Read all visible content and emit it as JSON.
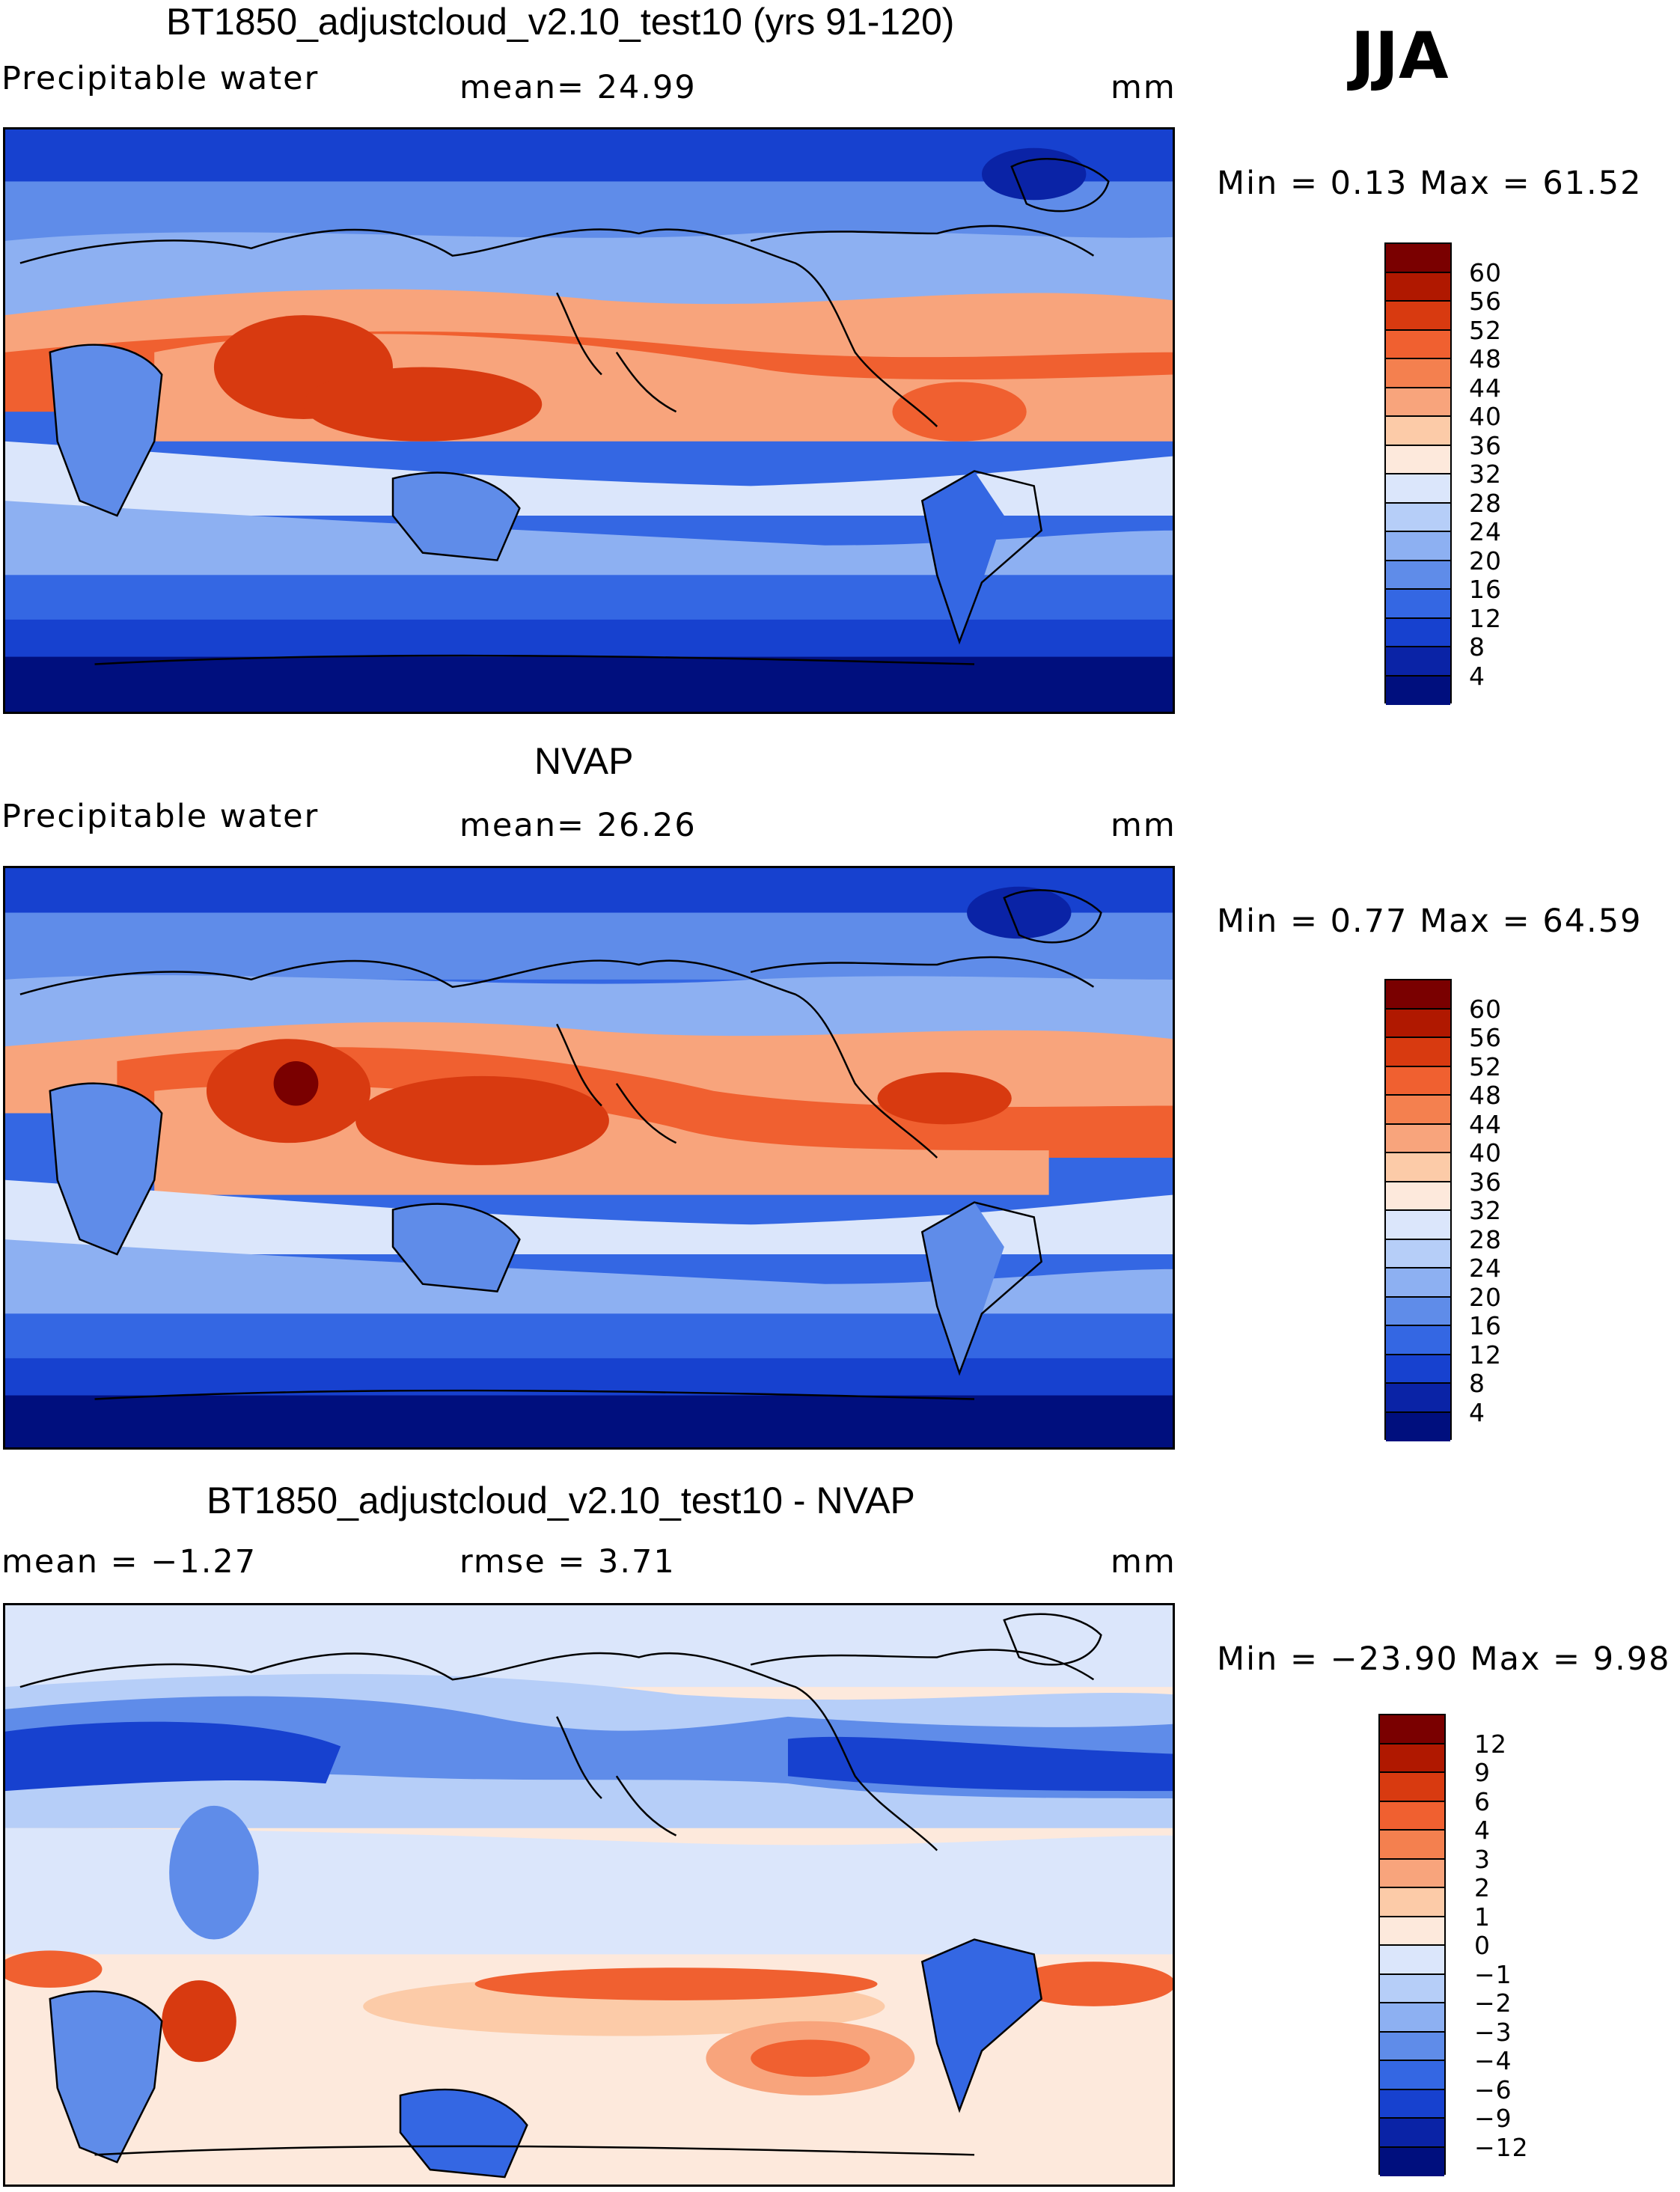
{
  "season": "JJA",
  "panels": [
    {
      "title": "BT1850_adjustcloud_v2.10_test10 (yrs 91-120)",
      "left_label": "Precipitable water",
      "stat1_text": "mean=   24.99",
      "stat2_text": "",
      "units": "mm",
      "minmax_text": "Min =   0.13 Max =   61.52",
      "colorbar_labels": [
        "60",
        "56",
        "52",
        "48",
        "44",
        "40",
        "36",
        "32",
        "28",
        "24",
        "20",
        "16",
        "12",
        "8",
        "4"
      ],
      "colorbar_colors": [
        "#7a0000",
        "#b01800",
        "#d83a10",
        "#f06030",
        "#f4804f",
        "#f8a47c",
        "#fccba8",
        "#fde9dc",
        "#dbe6fb",
        "#b6cef8",
        "#8db0f2",
        "#5f8ce9",
        "#3467e3",
        "#1741cf",
        "#0a23a6",
        "#000f7e"
      ]
    },
    {
      "title": "NVAP",
      "left_label": "Precipitable water",
      "stat1_text": "mean=   26.26",
      "stat2_text": "",
      "units": "mm",
      "minmax_text": "Min =   0.77 Max =   64.59",
      "colorbar_labels": [
        "60",
        "56",
        "52",
        "48",
        "44",
        "40",
        "36",
        "32",
        "28",
        "24",
        "20",
        "16",
        "12",
        "8",
        "4"
      ],
      "colorbar_colors": [
        "#7a0000",
        "#b01800",
        "#d83a10",
        "#f06030",
        "#f4804f",
        "#f8a47c",
        "#fccba8",
        "#fde9dc",
        "#dbe6fb",
        "#b6cef8",
        "#8db0f2",
        "#5f8ce9",
        "#3467e3",
        "#1741cf",
        "#0a23a6",
        "#000f7e"
      ]
    },
    {
      "title": "BT1850_adjustcloud_v2.10_test10 - NVAP",
      "left_label": "mean =   −1.27",
      "stat1_text": "rmse =    3.71",
      "stat2_text": "",
      "units": "mm",
      "minmax_text": "Min = −23.90 Max =    9.98",
      "colorbar_labels": [
        "12",
        "9",
        "6",
        "4",
        "3",
        "2",
        "1",
        "0",
        "−1",
        "−2",
        "−3",
        "−4",
        "−6",
        "−9",
        "−12"
      ],
      "colorbar_colors": [
        "#7a0000",
        "#b01800",
        "#d83a10",
        "#f06030",
        "#f4804f",
        "#f8a47c",
        "#fccba8",
        "#fde9dc",
        "#dbe6fb",
        "#b6cef8",
        "#8db0f2",
        "#5f8ce9",
        "#3467e3",
        "#1741cf",
        "#0a23a6",
        "#000f7e"
      ]
    }
  ]
}
